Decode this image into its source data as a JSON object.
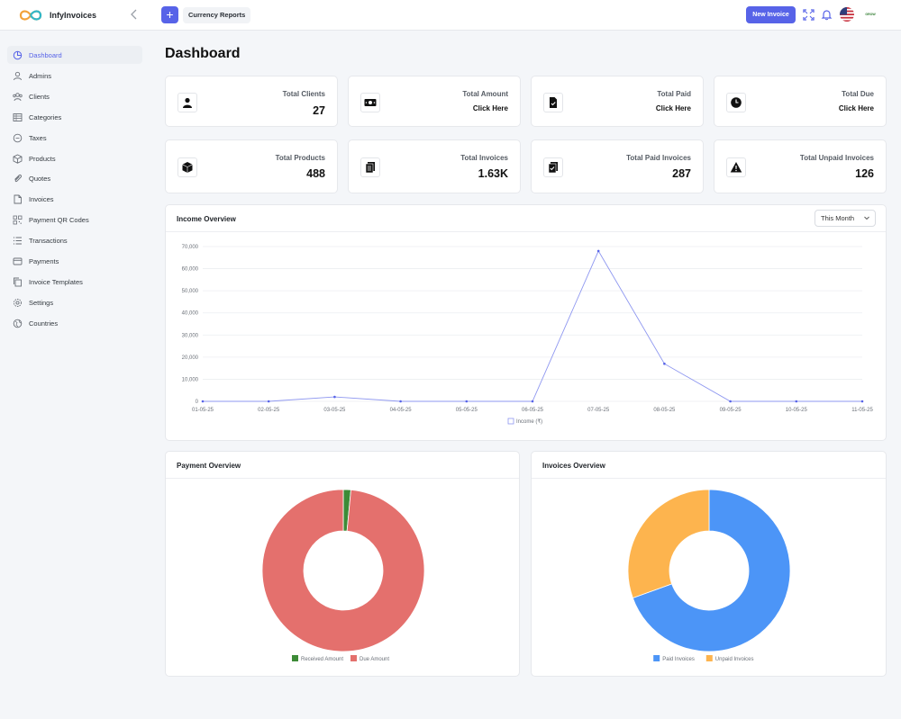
{
  "app": {
    "name": "InfyInvoices"
  },
  "header": {
    "quick_action": "Currency Reports",
    "new_invoice": "New Invoice",
    "avatar_text": "GROW"
  },
  "sidebar": {
    "items": [
      {
        "label": "Dashboard",
        "icon": "dashboard-icon"
      },
      {
        "label": "Admins",
        "icon": "user-icon"
      },
      {
        "label": "Clients",
        "icon": "clients-icon"
      },
      {
        "label": "Categories",
        "icon": "categories-icon"
      },
      {
        "label": "Taxes",
        "icon": "taxes-icon"
      },
      {
        "label": "Products",
        "icon": "box-icon"
      },
      {
        "label": "Quotes",
        "icon": "paperclip-icon"
      },
      {
        "label": "Invoices",
        "icon": "file-icon"
      },
      {
        "label": "Payment QR Codes",
        "icon": "qr-icon"
      },
      {
        "label": "Transactions",
        "icon": "list-icon"
      },
      {
        "label": "Payments",
        "icon": "card-icon"
      },
      {
        "label": "Invoice Templates",
        "icon": "copy-icon"
      },
      {
        "label": "Settings",
        "icon": "gear-icon"
      },
      {
        "label": "Countries",
        "icon": "globe-icon"
      }
    ]
  },
  "page": {
    "title": "Dashboard"
  },
  "stats": [
    {
      "title": "Total Clients",
      "value": "27"
    },
    {
      "title": "Total Amount",
      "value": "Click Here"
    },
    {
      "title": "Total Paid",
      "value": "Click Here"
    },
    {
      "title": "Total Due",
      "value": "Click Here"
    },
    {
      "title": "Total Products",
      "value": "488"
    },
    {
      "title": "Total Invoices",
      "value": "1.63K"
    },
    {
      "title": "Total Paid Invoices",
      "value": "287"
    },
    {
      "title": "Total Unpaid Invoices",
      "value": "126"
    }
  ],
  "income": {
    "title": "Income Overview",
    "period": "This Month"
  },
  "payment_overview": {
    "title": "Payment Overview"
  },
  "invoices_overview": {
    "title": "Invoices Overview"
  },
  "chart_data": [
    {
      "type": "line",
      "title": "Income Overview",
      "x": [
        "01-05-25",
        "02-05-25",
        "03-05-25",
        "04-05-25",
        "05-05-25",
        "06-05-25",
        "07-05-25",
        "08-05-25",
        "09-05-25",
        "10-05-25",
        "11-05-25"
      ],
      "series": [
        {
          "name": "Income (₹)",
          "values": [
            0,
            0,
            2000,
            0,
            0,
            0,
            68000,
            17000,
            0,
            0,
            0
          ],
          "color": "#8e97f0"
        }
      ],
      "yticks": [
        "0",
        "10,000",
        "20,000",
        "30,000",
        "40,000",
        "50,000",
        "60,000",
        "70,000"
      ],
      "ylim": [
        0,
        70000
      ],
      "grid": true,
      "legend": "bottom"
    },
    {
      "type": "pie",
      "title": "Payment Overview",
      "labels": [
        "Received Amount",
        "Due Amount"
      ],
      "values": [
        1.5,
        98.5
      ],
      "colors": [
        "#3d8b37",
        "#e4706d"
      ],
      "legend": "bottom"
    },
    {
      "type": "pie",
      "title": "Invoices Overview",
      "labels": [
        "Paid Invoices",
        "Unpaid Invoices"
      ],
      "values": [
        287,
        126
      ],
      "colors": [
        "#4c95f7",
        "#fdb44e"
      ],
      "legend": "bottom"
    }
  ]
}
